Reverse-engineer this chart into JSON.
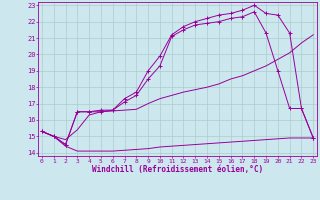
{
  "xlabel": "Windchill (Refroidissement éolien,°C)",
  "background_color": "#cce8ee",
  "grid_color": "#aacccc",
  "line_color": "#990099",
  "xmin": 0,
  "xmax": 23,
  "ymin": 14,
  "ymax": 23,
  "x_ticks": [
    0,
    1,
    2,
    3,
    4,
    5,
    6,
    7,
    8,
    9,
    10,
    11,
    12,
    13,
    14,
    15,
    16,
    17,
    18,
    19,
    20,
    21,
    22,
    23
  ],
  "y_ticks": [
    14,
    15,
    16,
    17,
    18,
    19,
    20,
    21,
    22,
    23
  ],
  "line1_x": [
    0,
    1,
    2,
    3,
    4,
    5,
    6,
    7,
    8,
    9,
    10,
    11,
    12,
    13,
    14,
    15,
    16,
    17,
    18,
    19,
    20,
    21,
    22,
    23
  ],
  "line1_y": [
    15.3,
    15.0,
    14.4,
    14.1,
    14.1,
    14.1,
    14.1,
    14.15,
    14.2,
    14.25,
    14.35,
    14.4,
    14.45,
    14.5,
    14.55,
    14.6,
    14.65,
    14.7,
    14.75,
    14.8,
    14.85,
    14.9,
    14.9,
    14.9
  ],
  "line2_x": [
    0,
    1,
    2,
    3,
    4,
    5,
    6,
    7,
    8,
    9,
    10,
    11,
    12,
    13,
    14,
    15,
    16,
    17,
    18,
    19,
    20,
    21,
    22,
    23
  ],
  "line2_y": [
    15.3,
    15.0,
    14.8,
    15.4,
    16.3,
    16.5,
    16.55,
    16.6,
    16.65,
    17.0,
    17.3,
    17.5,
    17.7,
    17.85,
    18.0,
    18.2,
    18.5,
    18.7,
    19.0,
    19.3,
    19.7,
    20.1,
    20.7,
    21.2
  ],
  "line3_x": [
    0,
    1,
    2,
    3,
    4,
    5,
    6,
    7,
    8,
    9,
    10,
    11,
    12,
    13,
    14,
    15,
    16,
    17,
    18,
    19,
    20,
    21,
    22,
    23
  ],
  "line3_y": [
    15.3,
    15.0,
    14.5,
    16.5,
    16.5,
    16.5,
    16.6,
    17.1,
    17.5,
    18.5,
    19.3,
    21.1,
    21.5,
    21.8,
    21.9,
    22.0,
    22.2,
    22.3,
    22.6,
    21.3,
    19.0,
    16.7,
    16.7,
    14.9
  ],
  "line4_x": [
    0,
    1,
    2,
    3,
    4,
    5,
    6,
    7,
    8,
    9,
    10,
    11,
    12,
    13,
    14,
    15,
    16,
    17,
    18,
    19,
    20,
    21,
    22,
    23
  ],
  "line4_y": [
    15.3,
    15.0,
    14.5,
    16.5,
    16.5,
    16.6,
    16.6,
    17.3,
    17.7,
    19.0,
    19.9,
    21.2,
    21.7,
    22.0,
    22.2,
    22.4,
    22.5,
    22.7,
    23.0,
    22.5,
    22.4,
    21.3,
    16.7,
    14.9
  ]
}
